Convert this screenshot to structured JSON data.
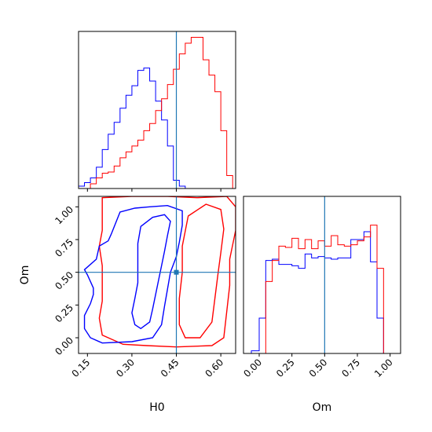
{
  "chart_data": {
    "type": "corner",
    "colors": {
      "run_a": "#0000ff",
      "run_b": "#ff0000",
      "truth": "#1f77b4"
    },
    "truth": {
      "H0": 0.45,
      "Om": 0.5
    },
    "xlabels": {
      "H0": "H0",
      "Om": "Om"
    },
    "ylabels": {
      "Om": "Om"
    },
    "ticks": {
      "H0": [
        "0.15",
        "0.30",
        "0.45",
        "0.60"
      ],
      "Om": [
        "0.00",
        "0.25",
        "0.50",
        "0.75",
        "1.00"
      ]
    },
    "ranges": {
      "H0": [
        0.12,
        0.65
      ],
      "Om": [
        -0.12,
        1.08
      ]
    },
    "hist_H0": {
      "edges": [
        0.12,
        0.14,
        0.16,
        0.18,
        0.2,
        0.22,
        0.24,
        0.26,
        0.28,
        0.3,
        0.32,
        0.34,
        0.36,
        0.38,
        0.4,
        0.42,
        0.44,
        0.46,
        0.48,
        0.5,
        0.52,
        0.54,
        0.56,
        0.58,
        0.6,
        0.62,
        0.64
      ],
      "run_a": [
        2,
        5,
        9,
        18,
        33,
        46,
        56,
        68,
        79,
        87,
        100,
        102,
        91,
        74,
        58,
        36,
        7,
        2,
        0,
        0,
        0,
        0,
        0,
        0,
        0,
        0
      ],
      "run_b": [
        0,
        0,
        4,
        9,
        13,
        14,
        19,
        26,
        31,
        36,
        41,
        49,
        55,
        66,
        76,
        88,
        101,
        114,
        123,
        128,
        128,
        109,
        96,
        82,
        49,
        11
      ]
    },
    "hist_Om": {
      "edges": [
        -0.12,
        -0.06,
        0.0,
        0.05,
        0.1,
        0.15,
        0.2,
        0.25,
        0.3,
        0.35,
        0.4,
        0.45,
        0.5,
        0.55,
        0.6,
        0.65,
        0.7,
        0.75,
        0.8,
        0.85,
        0.9,
        0.95,
        1.0,
        1.05
      ],
      "run_a": [
        0,
        2,
        27,
        71,
        72,
        68,
        68,
        67,
        65,
        76,
        73,
        74,
        73,
        72,
        73,
        73,
        87,
        87,
        93,
        70,
        27,
        0,
        0
      ],
      "run_b": [
        0,
        0,
        0,
        55,
        71,
        82,
        81,
        88,
        80,
        87,
        80,
        86,
        82,
        90,
        83,
        82,
        83,
        86,
        89,
        98,
        65,
        0,
        0
      ]
    },
    "contours_H0_Om": {
      "run_a": [
        [
          [
            0.23,
            0.79
          ],
          [
            0.26,
            0.96
          ],
          [
            0.31,
            0.99
          ],
          [
            0.36,
            1.0
          ],
          [
            0.42,
            1.01
          ],
          [
            0.47,
            0.97
          ],
          [
            0.47,
            0.86
          ],
          [
            0.46,
            0.73
          ],
          [
            0.45,
            0.62
          ],
          [
            0.43,
            0.5
          ],
          [
            0.42,
            0.37
          ],
          [
            0.41,
            0.24
          ],
          [
            0.4,
            0.1
          ],
          [
            0.37,
            0.0
          ],
          [
            0.3,
            -0.03
          ],
          [
            0.2,
            -0.04
          ],
          [
            0.16,
            0.0
          ],
          [
            0.14,
            0.07
          ],
          [
            0.14,
            0.17
          ],
          [
            0.16,
            0.26
          ],
          [
            0.17,
            0.33
          ],
          [
            0.17,
            0.38
          ],
          [
            0.15,
            0.48
          ],
          [
            0.14,
            0.52
          ],
          [
            0.18,
            0.6
          ],
          [
            0.19,
            0.7
          ],
          [
            0.22,
            0.74
          ],
          [
            0.23,
            0.79
          ]
        ],
        [
          [
            0.33,
            0.85
          ],
          [
            0.37,
            0.92
          ],
          [
            0.41,
            0.94
          ],
          [
            0.43,
            0.89
          ],
          [
            0.42,
            0.78
          ],
          [
            0.41,
            0.66
          ],
          [
            0.4,
            0.55
          ],
          [
            0.39,
            0.44
          ],
          [
            0.38,
            0.33
          ],
          [
            0.37,
            0.22
          ],
          [
            0.36,
            0.12
          ],
          [
            0.33,
            0.07
          ],
          [
            0.31,
            0.1
          ],
          [
            0.3,
            0.19
          ],
          [
            0.31,
            0.3
          ],
          [
            0.32,
            0.42
          ],
          [
            0.32,
            0.52
          ],
          [
            0.32,
            0.62
          ],
          [
            0.32,
            0.72
          ],
          [
            0.33,
            0.85
          ]
        ]
      ],
      "run_b": [
        [
          [
            0.2,
            1.07
          ],
          [
            0.3,
            1.08
          ],
          [
            0.42,
            1.08
          ],
          [
            0.52,
            1.07
          ],
          [
            0.62,
            1.08
          ],
          [
            0.65,
            1.0
          ],
          [
            0.65,
            0.82
          ],
          [
            0.63,
            0.6
          ],
          [
            0.63,
            0.4
          ],
          [
            0.62,
            0.2
          ],
          [
            0.61,
            0.0
          ],
          [
            0.57,
            -0.06
          ],
          [
            0.45,
            -0.07
          ],
          [
            0.35,
            -0.06
          ],
          [
            0.27,
            -0.05
          ],
          [
            0.2,
            0.02
          ],
          [
            0.19,
            0.15
          ],
          [
            0.2,
            0.28
          ],
          [
            0.2,
            0.4
          ],
          [
            0.2,
            0.55
          ],
          [
            0.19,
            0.7
          ],
          [
            0.2,
            0.82
          ],
          [
            0.2,
            0.95
          ],
          [
            0.2,
            1.07
          ]
        ],
        [
          [
            0.49,
            0.93
          ],
          [
            0.55,
            1.02
          ],
          [
            0.6,
            0.98
          ],
          [
            0.61,
            0.83
          ],
          [
            0.6,
            0.65
          ],
          [
            0.59,
            0.48
          ],
          [
            0.58,
            0.3
          ],
          [
            0.57,
            0.12
          ],
          [
            0.53,
            0.0
          ],
          [
            0.48,
            0.0
          ],
          [
            0.46,
            0.1
          ],
          [
            0.46,
            0.3
          ],
          [
            0.47,
            0.5
          ],
          [
            0.47,
            0.7
          ],
          [
            0.49,
            0.93
          ]
        ]
      ]
    }
  }
}
